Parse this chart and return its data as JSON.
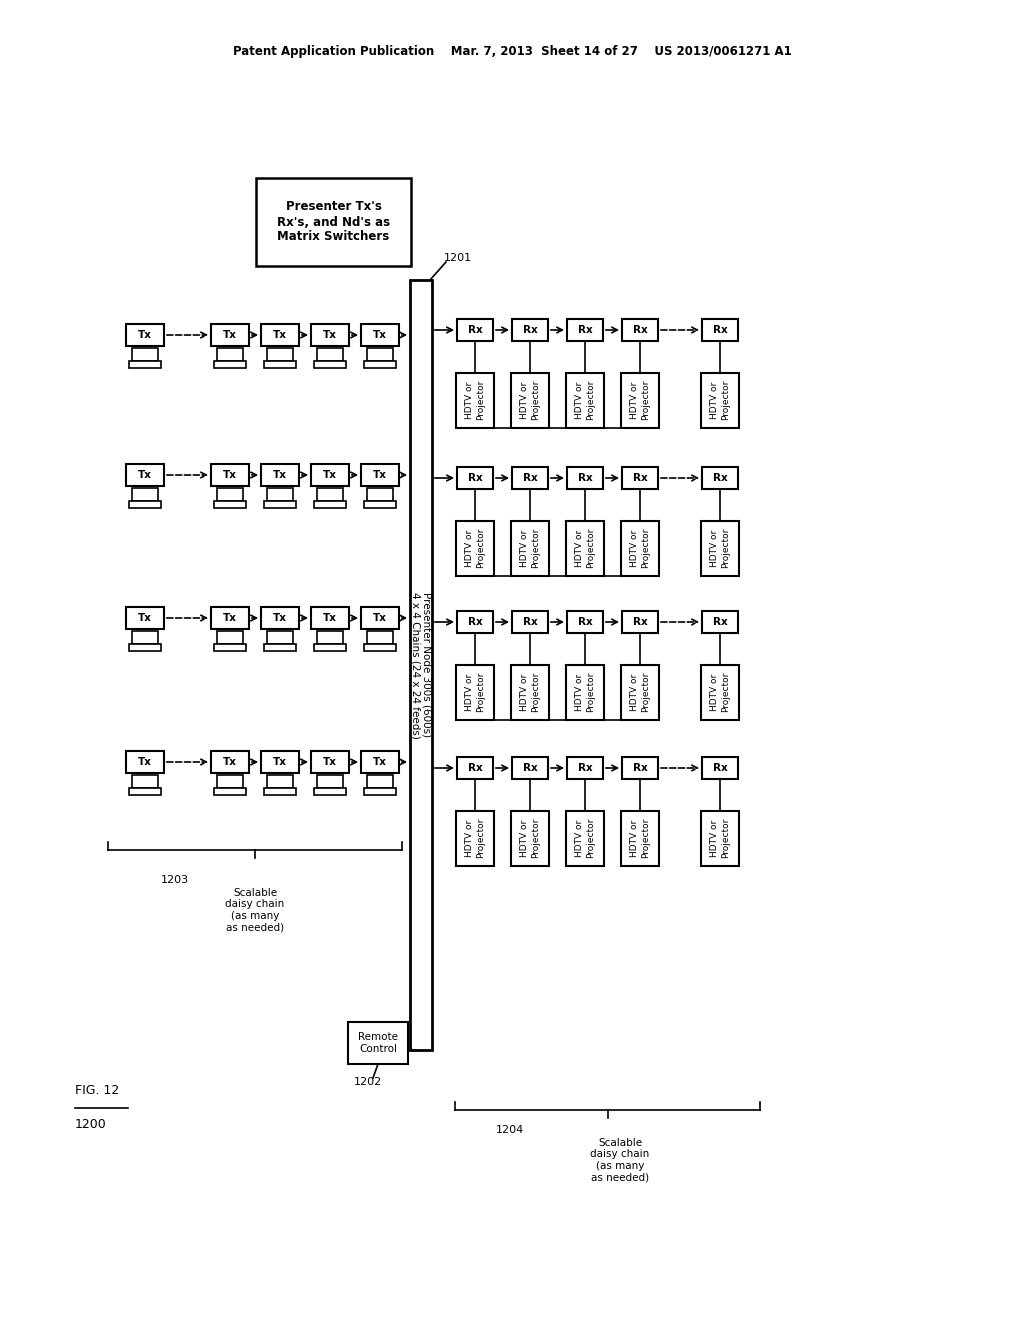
{
  "bg_color": "#ffffff",
  "header": "Patent Application Publication    Mar. 7, 2013  Sheet 14 of 27    US 2013/0061271 A1",
  "fig_label": "FIG. 12",
  "fig_number": "1200",
  "node_label": "Presenter Node 300s (600s)\n4 x 4 Chains (24 x 24 feeds)",
  "box_title": "Presenter Tx's\nRx's, and Nd's as\nMatrix Switchers",
  "label_1201": "1201",
  "label_1202": "1202",
  "label_1203": "1203",
  "label_1204": "1204",
  "scalable_left": "Scalable\ndaisy chain\n(as many\nas needed)",
  "scalable_right": "Scalable\ndaisy chain\n(as many\nas needed)",
  "remote_control": "Remote\nControl"
}
